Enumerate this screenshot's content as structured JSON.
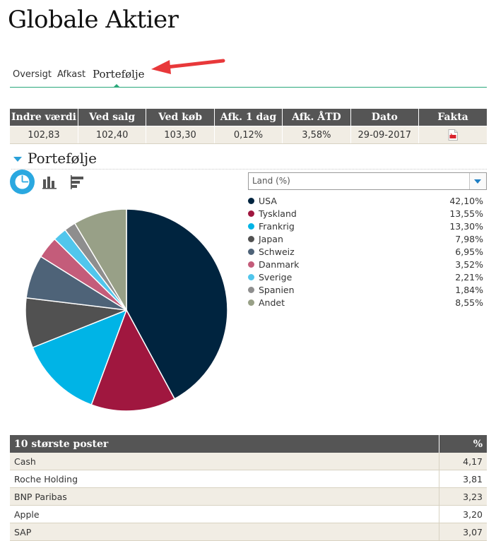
{
  "page": {
    "title": "Globale Aktier"
  },
  "tabs": [
    {
      "label": "Oversigt",
      "active": false
    },
    {
      "label": "Afkast",
      "active": false
    },
    {
      "label": "Portefølje",
      "active": true
    }
  ],
  "key_figures": {
    "headers": [
      "Indre værdi",
      "Ved salg",
      "Ved køb",
      "Afk. 1 dag",
      "Afk. ÅTD",
      "Dato",
      "Fakta"
    ],
    "values": [
      "102,83",
      "102,40",
      "103,30",
      "0,12%",
      "3,58%",
      "29-09-2017"
    ],
    "fakta_icon": "pdf-icon"
  },
  "portfolio": {
    "section_title": "Portefølje",
    "view_icons": [
      "pie-chart-icon",
      "bar-chart-icon",
      "horizontal-bar-chart-icon"
    ],
    "active_view": "pie-chart-icon",
    "select": {
      "value": "Land (%)"
    }
  },
  "chart_data": {
    "type": "pie",
    "categories": [
      "USA",
      "Tyskland",
      "Frankrig",
      "Japan",
      "Schweiz",
      "Danmark",
      "Sverige",
      "Spanien",
      "Andet"
    ],
    "values": [
      42.1,
      13.55,
      13.3,
      7.98,
      6.95,
      3.52,
      2.21,
      1.84,
      8.55
    ],
    "value_labels": [
      "42,10%",
      "13,55%",
      "13,30%",
      "7,98%",
      "6,95%",
      "3,52%",
      "2,21%",
      "1,84%",
      "8,55%"
    ],
    "colors": [
      "#00243f",
      "#a0173f",
      "#00b4e6",
      "#515151",
      "#4e6378",
      "#c45c7a",
      "#51c6ec",
      "#8e8e8e",
      "#98a087"
    ],
    "legend_placement": "right"
  },
  "top_holdings": {
    "header_name": "10 største poster",
    "header_pct": "%",
    "rows": [
      {
        "name": "Cash",
        "pct": "4,17"
      },
      {
        "name": "Roche Holding",
        "pct": "3,81"
      },
      {
        "name": "BNP Paribas",
        "pct": "3,23"
      },
      {
        "name": "Apple",
        "pct": "3,20"
      },
      {
        "name": "SAP",
        "pct": "3,07"
      }
    ]
  },
  "colors": {
    "accent_green": "#2aa87a",
    "accent_blue": "#2aa8e0",
    "header_bg": "#555555",
    "row_bg": "#f1ede4",
    "annotation_arrow": "#e8383a"
  }
}
